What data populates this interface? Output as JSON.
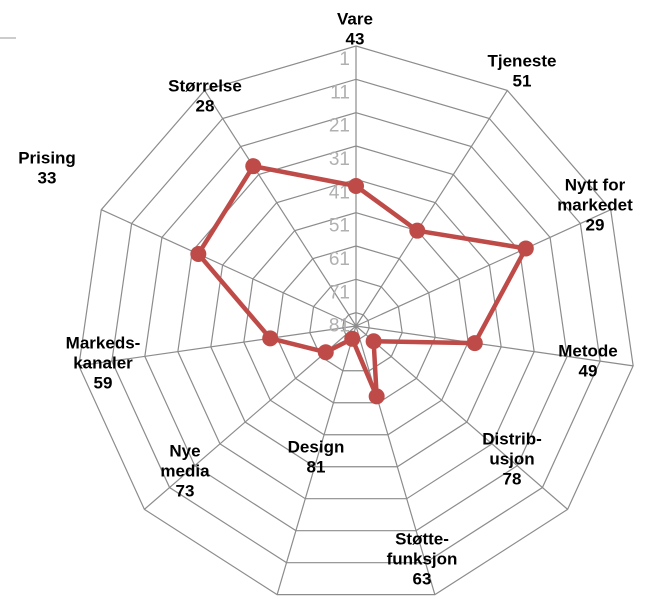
{
  "chart_data": {
    "type": "radar",
    "categories": [
      [
        "Vare"
      ],
      [
        "Tjeneste"
      ],
      [
        "Nytt for",
        "markedet"
      ],
      [
        "Metode"
      ],
      [
        "Distrib-",
        "usjon"
      ],
      [
        "Støtte-",
        "funksjon"
      ],
      [
        "Design"
      ],
      [
        "Nye",
        "media"
      ],
      [
        "Markeds-",
        "kanaler"
      ],
      [
        "Prising"
      ],
      [
        "Størrelse"
      ]
    ],
    "values": [
      43,
      51,
      29,
      49,
      78,
      63,
      81,
      73,
      59,
      33,
      28
    ],
    "color": "#be4b48",
    "ylim": [
      85,
      1
    ],
    "yticks": [
      1,
      11,
      21,
      31,
      41,
      51,
      61,
      71,
      81
    ],
    "grid": true
  }
}
